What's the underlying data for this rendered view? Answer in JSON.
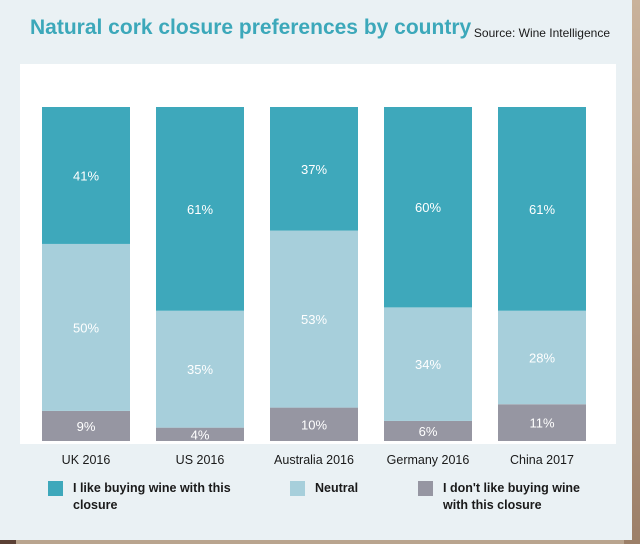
{
  "header": {
    "title": "Natural cork closure preferences by country",
    "source": "Source: Wine Intelligence"
  },
  "colors": {
    "like": "#3ea8bb",
    "neutral": "#a7cfdb",
    "dislike": "#9696a2"
  },
  "legend": {
    "like": "I like buying wine with this\nclosure",
    "neutral": "Neutral",
    "dislike": "I don't like buying wine\nwith this closure"
  },
  "chart_data": {
    "type": "bar",
    "stacked": true,
    "title": "Natural cork closure preferences by country",
    "categories": [
      "UK 2016",
      "US 2016",
      "Australia 2016",
      "Germany 2016",
      "China 2017"
    ],
    "ylim": [
      0,
      100
    ],
    "legend_position": "bottom",
    "grid": false,
    "series": [
      {
        "name": "I don't like buying wine with this closure",
        "values": [
          9,
          4,
          10,
          6,
          11
        ]
      },
      {
        "name": "Neutral",
        "values": [
          50,
          35,
          53,
          34,
          28
        ]
      },
      {
        "name": "I like buying wine with this closure",
        "values": [
          41,
          61,
          37,
          60,
          61
        ]
      }
    ]
  }
}
